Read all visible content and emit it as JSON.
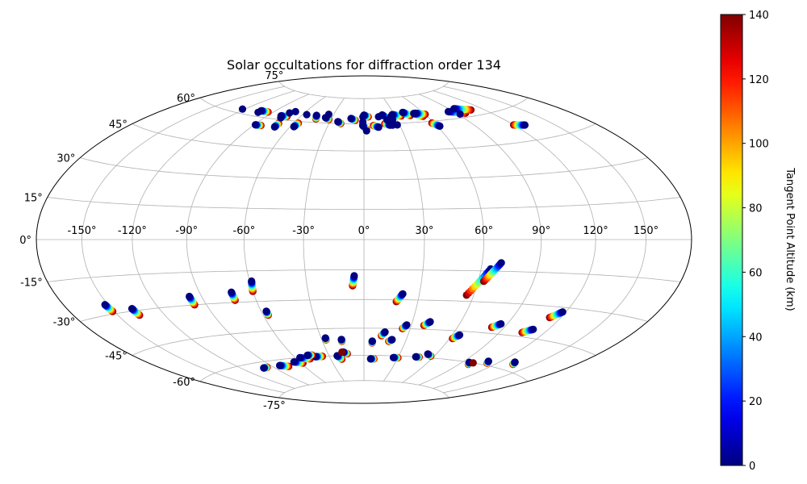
{
  "chart_data": {
    "type": "scatter",
    "projection": "hammer",
    "title": "Solar occultations for diffraction order 134",
    "xlabel": "",
    "ylabel": "",
    "x_ticks": [
      "-150°",
      "-120°",
      "-90°",
      "-60°",
      "-30°",
      "0°",
      "30°",
      "60°",
      "90°",
      "120°",
      "150°"
    ],
    "y_ticks": [
      "-75°",
      "-60°",
      "-45°",
      "-30°",
      "-15°",
      "0°",
      "15°",
      "30°",
      "45°",
      "60°",
      "75°"
    ],
    "x_tick_values": [
      -150,
      -120,
      -90,
      -60,
      -30,
      0,
      30,
      60,
      90,
      120,
      150
    ],
    "y_tick_values": [
      -75,
      -60,
      -45,
      -30,
      -15,
      0,
      15,
      30,
      45,
      60,
      75
    ],
    "grid": true,
    "colormap": "jet",
    "colorbar": {
      "label": "Tangent Point Altitude (km)",
      "range": [
        0,
        140
      ],
      "ticks": [
        "0",
        "20",
        "40",
        "60",
        "80",
        "100",
        "120",
        "140"
      ],
      "tick_values": [
        0,
        20,
        40,
        60,
        80,
        100,
        120,
        140
      ]
    },
    "tracks": [
      {
        "start": [
          -151,
          -29
        ],
        "end": [
          -152,
          -26
        ],
        "alt_start": 140,
        "alt_end": 0
      },
      {
        "start": [
          -136,
          -32
        ],
        "end": [
          -137,
          -29
        ],
        "alt_start": 140,
        "alt_end": 0
      },
      {
        "start": [
          -97,
          -30
        ],
        "end": [
          -97,
          -26
        ],
        "alt_start": 140,
        "alt_end": 0
      },
      {
        "start": [
          -72,
          -29
        ],
        "end": [
          -72,
          -25
        ],
        "alt_start": 140,
        "alt_end": 0
      },
      {
        "start": [
          -60,
          -25
        ],
        "end": [
          -59,
          -20
        ],
        "alt_start": 140,
        "alt_end": 0
      },
      {
        "start": [
          -57,
          -37
        ],
        "end": [
          -57,
          -35
        ],
        "alt_start": 140,
        "alt_end": 0
      },
      {
        "start": [
          -6,
          -23
        ],
        "end": [
          -5,
          -18
        ],
        "alt_start": 140,
        "alt_end": 0
      },
      {
        "start": [
          18,
          -31
        ],
        "end": [
          21,
          -27
        ],
        "alt_start": 140,
        "alt_end": 0
      },
      {
        "start": [
          56,
          -27
        ],
        "end": [
          65,
          -14
        ],
        "alt_start": 140,
        "alt_end": 0
      },
      {
        "start": [
          63,
          -20
        ],
        "end": [
          70,
          -11
        ],
        "alt_start": 140,
        "alt_end": 0
      },
      {
        "start": [
          113,
          -35
        ],
        "end": [
          118,
          -32
        ],
        "alt_start": 140,
        "alt_end": 0
      },
      {
        "start": [
          105,
          -43
        ],
        "end": [
          110,
          -41
        ],
        "alt_start": 140,
        "alt_end": 0
      },
      {
        "start": [
          82,
          -42
        ],
        "end": [
          86,
          -40
        ],
        "alt_start": 140,
        "alt_end": 0
      },
      {
        "start": [
          62,
          -49
        ],
        "end": [
          65,
          -47
        ],
        "alt_start": 140,
        "alt_end": 0
      },
      {
        "start": [
          38,
          -43
        ],
        "end": [
          41,
          -41
        ],
        "alt_start": 140,
        "alt_end": 0
      },
      {
        "start": [
          25,
          -45
        ],
        "end": [
          27,
          -43
        ],
        "alt_start": 140,
        "alt_end": 0
      },
      {
        "start": [
          12,
          -49
        ],
        "end": [
          14,
          -47
        ],
        "alt_start": 140,
        "alt_end": 0
      },
      {
        "start": [
          18,
          -52
        ],
        "end": [
          20,
          -51
        ],
        "alt_start": 140,
        "alt_end": 0
      },
      {
        "start": [
          6,
          -53
        ],
        "end": [
          6,
          -52
        ],
        "alt_start": 140,
        "alt_end": 0
      },
      {
        "start": [
          -27,
          -51
        ],
        "end": [
          -27,
          -50
        ],
        "alt_start": 140,
        "alt_end": 0
      },
      {
        "start": [
          -16,
          -52
        ],
        "end": [
          -16,
          -51
        ],
        "alt_start": 140,
        "alt_end": 0
      },
      {
        "start": [
          -96,
          -63
        ],
        "end": [
          -100,
          -63
        ],
        "alt_start": 140,
        "alt_end": 0
      },
      {
        "start": [
          -75,
          -64
        ],
        "end": [
          -82,
          -63
        ],
        "alt_start": 140,
        "alt_end": 0
      },
      {
        "start": [
          -58,
          -63
        ],
        "end": [
          -65,
          -62
        ],
        "alt_start": 140,
        "alt_end": 0
      },
      {
        "start": [
          -48,
          -61
        ],
        "end": [
          -56,
          -60
        ],
        "alt_start": 140,
        "alt_end": 0
      },
      {
        "start": [
          -36,
          -60
        ],
        "end": [
          -42,
          -60
        ],
        "alt_start": 140,
        "alt_end": 0
      },
      {
        "start": [
          -44,
          -59
        ],
        "end": [
          -48,
          -59
        ],
        "alt_start": 140,
        "alt_end": 0
      },
      {
        "start": [
          -14,
          -59
        ],
        "end": [
          -17,
          -58
        ],
        "alt_start": 140,
        "alt_end": 0
      },
      {
        "start": [
          -20,
          -62
        ],
        "end": [
          -23,
          -60
        ],
        "alt_start": 140,
        "alt_end": 0
      },
      {
        "start": [
          9,
          -62
        ],
        "end": [
          6,
          -62
        ],
        "alt_start": 140,
        "alt_end": 0
      },
      {
        "start": [
          30,
          -61
        ],
        "end": [
          26,
          -61
        ],
        "alt_start": 140,
        "alt_end": 0
      },
      {
        "start": [
          48,
          -60
        ],
        "end": [
          45,
          -60
        ],
        "alt_start": 140,
        "alt_end": 0
      },
      {
        "start": [
          57,
          -59
        ],
        "end": [
          53,
          -58
        ],
        "alt_start": 140,
        "alt_end": 0
      },
      {
        "start": [
          98,
          -61
        ],
        "end": [
          96,
          -60
        ],
        "alt_start": 140,
        "alt_end": 0
      },
      {
        "start": [
          112,
          -59
        ],
        "end": [
          110,
          -58
        ],
        "alt_start": 140,
        "alt_end": 0
      },
      {
        "start": [
          134,
          -57
        ],
        "end": [
          132,
          -56
        ],
        "alt_start": 140,
        "alt_end": 0
      },
      {
        "start": [
          -95,
          63
        ],
        "end": [
          -103,
          63
        ],
        "alt_start": 140,
        "alt_end": 0
      },
      {
        "start": [
          -84,
          56
        ],
        "end": [
          -89,
          56
        ],
        "alt_start": 140,
        "alt_end": 0
      },
      {
        "start": [
          -72,
          62
        ],
        "end": [
          -78,
          62
        ],
        "alt_start": 140,
        "alt_end": 0
      },
      {
        "start": [
          -72,
          58
        ],
        "end": [
          -72,
          56
        ],
        "alt_start": 140,
        "alt_end": 0
      },
      {
        "start": [
          -56,
          59
        ],
        "end": [
          -57,
          57
        ],
        "alt_start": 140,
        "alt_end": 0
      },
      {
        "start": [
          -44,
          62
        ],
        "end": [
          -46,
          64
        ],
        "alt_start": 140,
        "alt_end": 0
      },
      {
        "start": [
          -32,
          62
        ],
        "end": [
          -36,
          63
        ],
        "alt_start": 140,
        "alt_end": 0
      },
      {
        "start": [
          -20,
          60
        ],
        "end": [
          -23,
          61
        ],
        "alt_start": 140,
        "alt_end": 0
      },
      {
        "start": [
          -8,
          62
        ],
        "end": [
          -12,
          63
        ],
        "alt_start": 140,
        "alt_end": 0
      },
      {
        "start": [
          4,
          64
        ],
        "end": [
          0,
          65
        ],
        "alt_start": 140,
        "alt_end": 0
      },
      {
        "start": [
          2,
          57
        ],
        "end": [
          -1,
          59
        ],
        "alt_start": 140,
        "alt_end": 0
      },
      {
        "start": [
          8,
          59
        ],
        "end": [
          12,
          58
        ],
        "alt_start": 140,
        "alt_end": 0
      },
      {
        "start": [
          22,
          63
        ],
        "end": [
          18,
          65
        ],
        "alt_start": 140,
        "alt_end": 0
      },
      {
        "start": [
          18,
          60
        ],
        "end": [
          22,
          59
        ],
        "alt_start": 140,
        "alt_end": 0
      },
      {
        "start": [
          36,
          64
        ],
        "end": [
          28,
          65
        ],
        "alt_start": 140,
        "alt_end": 0
      },
      {
        "start": [
          45,
          64
        ],
        "end": [
          40,
          66
        ],
        "alt_start": 140,
        "alt_end": 0
      },
      {
        "start": [
          56,
          63
        ],
        "end": [
          50,
          65
        ],
        "alt_start": 140,
        "alt_end": 0
      },
      {
        "start": [
          60,
          64
        ],
        "end": [
          52,
          65
        ],
        "alt_start": 140,
        "alt_end": 0
      },
      {
        "start": [
          58,
          59
        ],
        "end": [
          62,
          57
        ],
        "alt_start": 140,
        "alt_end": 0
      },
      {
        "start": [
          98,
          62
        ],
        "end": [
          85,
          64
        ],
        "alt_start": 140,
        "alt_end": 0
      },
      {
        "start": [
          108,
          63
        ],
        "end": [
          95,
          65
        ],
        "alt_start": 140,
        "alt_end": 0
      },
      {
        "start": [
          120,
          53
        ],
        "end": [
          128,
          52
        ],
        "alt_start": 140,
        "alt_end": 0
      }
    ],
    "points": [
      {
        "lon": -122,
        "lat": 62,
        "alt": 0
      },
      {
        "lon": -103,
        "lat": 62,
        "alt": 0
      },
      {
        "lon": -76,
        "lat": 61,
        "alt": 0
      },
      {
        "lon": -74,
        "lat": 64,
        "alt": 0
      },
      {
        "lon": -70,
        "lat": 65,
        "alt": 0
      },
      {
        "lon": -56,
        "lat": 64,
        "alt": 0
      },
      {
        "lon": -35,
        "lat": 65,
        "alt": 0
      },
      {
        "lon": -1,
        "lat": 61,
        "alt": 0
      },
      {
        "lon": -1,
        "lat": 64,
        "alt": 0
      },
      {
        "lon": 2,
        "lat": 56,
        "alt": 0
      },
      {
        "lon": 14,
        "lat": 64,
        "alt": 0
      },
      {
        "lon": 21,
        "lat": 62,
        "alt": 0
      },
      {
        "lon": 24,
        "lat": 59,
        "alt": 0
      },
      {
        "lon": 26,
        "lat": 62,
        "alt": 0
      },
      {
        "lon": 28,
        "lat": 59,
        "alt": 0
      },
      {
        "lon": 26,
        "lat": 64,
        "alt": 0
      },
      {
        "lon": 92,
        "lat": 62,
        "alt": 0
      },
      {
        "lon": -18,
        "lat": -58,
        "alt": 140
      },
      {
        "lon": 100,
        "lat": -60,
        "alt": 140
      }
    ]
  }
}
